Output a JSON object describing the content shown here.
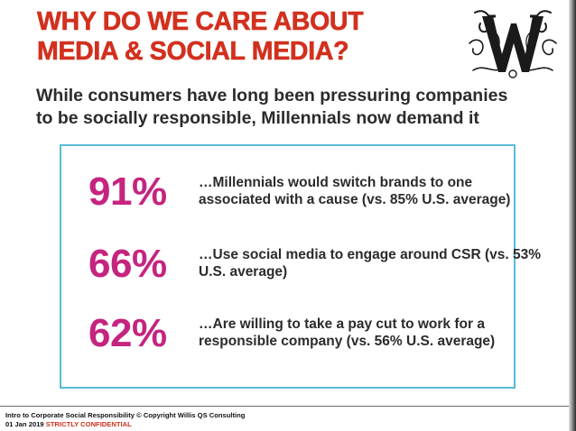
{
  "slide": {
    "title_lines": [
      "WHY DO WE CARE ABOUT",
      "MEDIA & SOCIAL MEDIA?"
    ],
    "logo_icon": "ornate-w-monogram-icon",
    "subtitle_lines": [
      "While consumers have long been pressuring companies",
      "to be socially responsible, Millennials now demand it"
    ]
  },
  "stats": [
    {
      "percent": "91%",
      "lines": [
        "…Millennials would switch brands to one",
        "associated with a cause (vs. 85% U.S. average)"
      ]
    },
    {
      "percent": "66%",
      "lines": [
        "…Use social media to engage around CSR (vs. 53%",
        "U.S. average)"
      ]
    },
    {
      "percent": "62%",
      "lines": [
        "…Are willing to take a pay cut to work for a",
        "responsible company (vs. 56% U.S. average)"
      ]
    }
  ],
  "footer": {
    "line1": "Intro to Corporate Social Responsibility © Copyright Willis QS Consulting",
    "date": "01 Jan 2019",
    "confidential": "STRICTLY CONFIDENTIAL"
  },
  "colors": {
    "title": "#d2301e",
    "percent": "#c5247f",
    "box_border": "#55bcd8",
    "body_text": "#2b2b2b"
  }
}
